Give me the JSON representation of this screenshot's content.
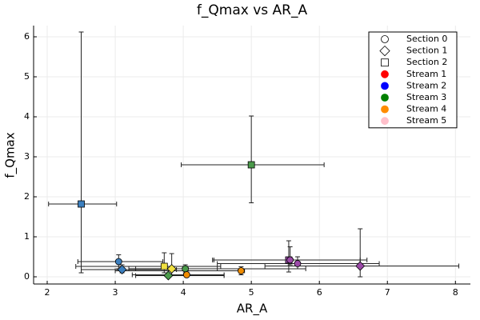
{
  "chart_data": {
    "type": "scatter",
    "title": "f_Qmax vs AR_A",
    "x_label": "AR_A",
    "y_label": "f_Qmax",
    "xlim": [
      1.8,
      8.22
    ],
    "ylim": [
      -0.18,
      6.28
    ],
    "xticks": [
      2,
      3,
      4,
      5,
      6,
      7,
      8
    ],
    "yticks": [
      0,
      1,
      2,
      3,
      4,
      5,
      6
    ],
    "grid": true,
    "legend": "top-right",
    "points": [
      {
        "x": 2.5,
        "y": 1.82,
        "xlo": 2.02,
        "xhi": 3.02,
        "ylo": 0.1,
        "yhi": 6.12,
        "marker": "square",
        "color": "#3b7fbf"
      },
      {
        "x": 5.0,
        "y": 2.8,
        "xlo": 3.97,
        "xhi": 6.07,
        "ylo": 1.85,
        "yhi": 4.02,
        "marker": "square",
        "color": "#4a9a4a"
      },
      {
        "x": 5.55,
        "y": 0.42,
        "xlo": 4.45,
        "xhi": 6.7,
        "ylo": 0.12,
        "yhi": 0.9,
        "marker": "square",
        "color": "#9b4aa8"
      },
      {
        "x": 3.72,
        "y": 0.26,
        "xlo": 2.42,
        "xhi": 4.55,
        "ylo": 0.1,
        "yhi": 0.6,
        "marker": "square",
        "color": "#f0e040"
      },
      {
        "x": 6.6,
        "y": 0.27,
        "xlo": 5.2,
        "xhi": 8.05,
        "ylo": 0.0,
        "yhi": 1.2,
        "marker": "diamond",
        "color": "#9b4aa8"
      },
      {
        "x": 5.68,
        "y": 0.33,
        "xlo": 4.5,
        "xhi": 6.88,
        "ylo": 0.2,
        "yhi": 0.5,
        "marker": "circle",
        "color": "#9b4aa8"
      },
      {
        "x": 4.03,
        "y": 0.2,
        "xlo": 3.2,
        "xhi": 5.8,
        "ylo": 0.1,
        "yhi": 0.3,
        "marker": "circle",
        "color": "#4a9a4a"
      },
      {
        "x": 4.05,
        "y": 0.05,
        "xlo": 3.25,
        "xhi": 4.6,
        "ylo": 0.0,
        "yhi": 0.12,
        "marker": "circle",
        "color": "#f08c00"
      },
      {
        "x": 4.85,
        "y": 0.15,
        "xlo": 3.0,
        "xhi": 4.9,
        "ylo": 0.05,
        "yhi": 0.25,
        "marker": "circle",
        "color": "#f08c00"
      },
      {
        "x": 3.05,
        "y": 0.38,
        "xlo": 2.45,
        "xhi": 3.7,
        "ylo": 0.2,
        "yhi": 0.55,
        "marker": "circle",
        "color": "#3b7fbf"
      },
      {
        "x": 3.1,
        "y": 0.18,
        "xlo": 2.5,
        "xhi": 3.9,
        "ylo": 0.1,
        "yhi": 0.3,
        "marker": "diamond",
        "color": "#3b7fbf"
      },
      {
        "x": 3.78,
        "y": 0.03,
        "xlo": 3.3,
        "xhi": 4.6,
        "ylo": 0.0,
        "yhi": 0.08,
        "marker": "diamond",
        "color": "#4a9a4a"
      },
      {
        "x": 3.83,
        "y": 0.2,
        "xlo": 3.3,
        "xhi": 4.5,
        "ylo": 0.05,
        "yhi": 0.58,
        "marker": "diamond",
        "color": "#f0e040"
      },
      {
        "x": 5.57,
        "y": 0.42,
        "xlo": 4.43,
        "xhi": 6.6,
        "ylo": 0.3,
        "yhi": 0.75,
        "marker": "circle",
        "color": "#9b4aa8"
      }
    ],
    "legend_entries": [
      {
        "name": "Section 0",
        "marker": "circle",
        "color": "#ffffff"
      },
      {
        "name": "Section 1",
        "marker": "diamond",
        "color": "#ffffff"
      },
      {
        "name": "Section 2",
        "marker": "square",
        "color": "#ffffff"
      },
      {
        "name": "Stream 1",
        "marker": "circle",
        "color": "#ff0000"
      },
      {
        "name": "Stream 2",
        "marker": "circle",
        "color": "#0000ff"
      },
      {
        "name": "Stream 3",
        "marker": "circle",
        "color": "#008000"
      },
      {
        "name": "Stream 4",
        "marker": "circle",
        "color": "#ff8c00"
      },
      {
        "name": "Stream 5",
        "marker": "circle",
        "color": "#ffc0cb"
      }
    ]
  }
}
